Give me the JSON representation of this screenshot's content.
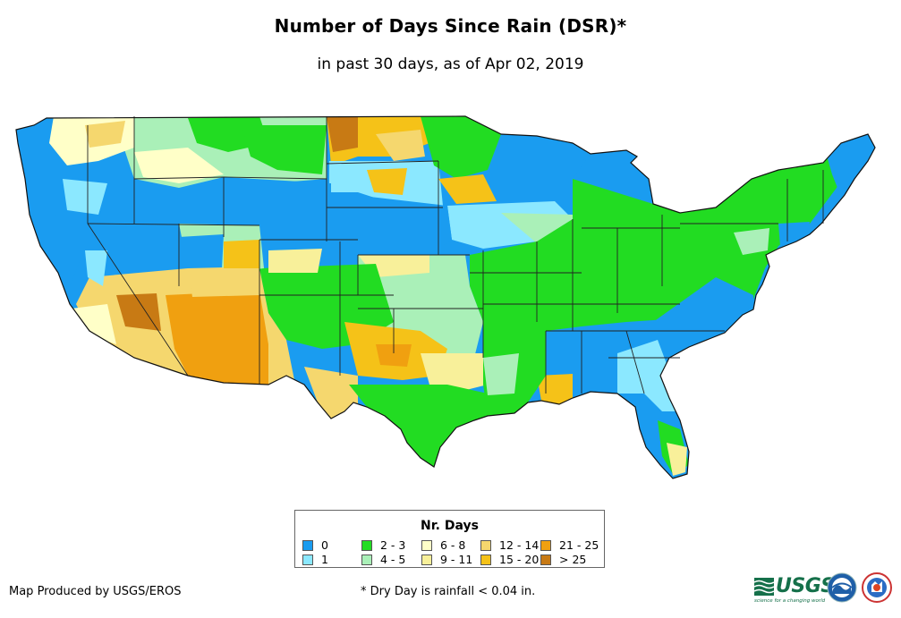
{
  "header": {
    "title": "Number of Days Since Rain (DSR)*",
    "subtitle": "in past 30 days, as of Apr 02, 2019"
  },
  "legend": {
    "title": "Nr. Days",
    "items": [
      {
        "label": "0",
        "color": "#1a9cf0"
      },
      {
        "label": "1",
        "color": "#8be8ff"
      },
      {
        "label": "2 - 3",
        "color": "#22dc22"
      },
      {
        "label": "4 - 5",
        "color": "#aaf0b8"
      },
      {
        "label": "6 - 8",
        "color": "#ffffc8"
      },
      {
        "label": "9 - 11",
        "color": "#f8f09a"
      },
      {
        "label": "12 - 14",
        "color": "#f5d76e"
      },
      {
        "label": "15 - 20",
        "color": "#f5c218"
      },
      {
        "label": "21 - 25",
        "color": "#f0a010"
      },
      {
        "label": "> 25",
        "color": "#c87a14"
      }
    ]
  },
  "footer": {
    "credit": "Map Produced by USGS/EROS",
    "note": "* Dry Day is rainfall < 0.04 in.",
    "usgs_logo": "USGS",
    "usgs_tagline": "science for a changing world"
  }
}
